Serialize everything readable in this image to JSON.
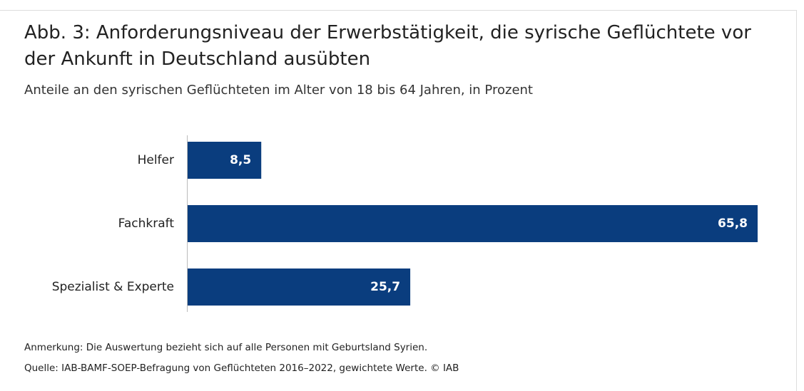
{
  "chart_data": {
    "type": "bar",
    "orientation": "horizontal",
    "title": "Abb. 3: Anforderungsniveau der Erwerbstätigkeit, die syrische Geflüchtete vor der Ankunft in Deutschland ausübten",
    "subtitle": "Anteile an den syrischen Geflüchteten im Alter von 18 bis 64 Jahren, in Prozent",
    "categories": [
      "Helfer",
      "Fachkraft",
      "Spezialist & Experte"
    ],
    "values": [
      8.5,
      65.8,
      25.7
    ],
    "value_labels": [
      "8,5",
      "65,8",
      "25,7"
    ],
    "color": "#0a3d7e",
    "note": "Anmerkung: Die Auswertung bezieht sich auf alle Personen mit Geburtsland Syrien.",
    "source": "Quelle: IAB-BAMF-SOEP-Befragung von Geflüchteten 2016–2022, gewichtete Werte. © IAB"
  }
}
